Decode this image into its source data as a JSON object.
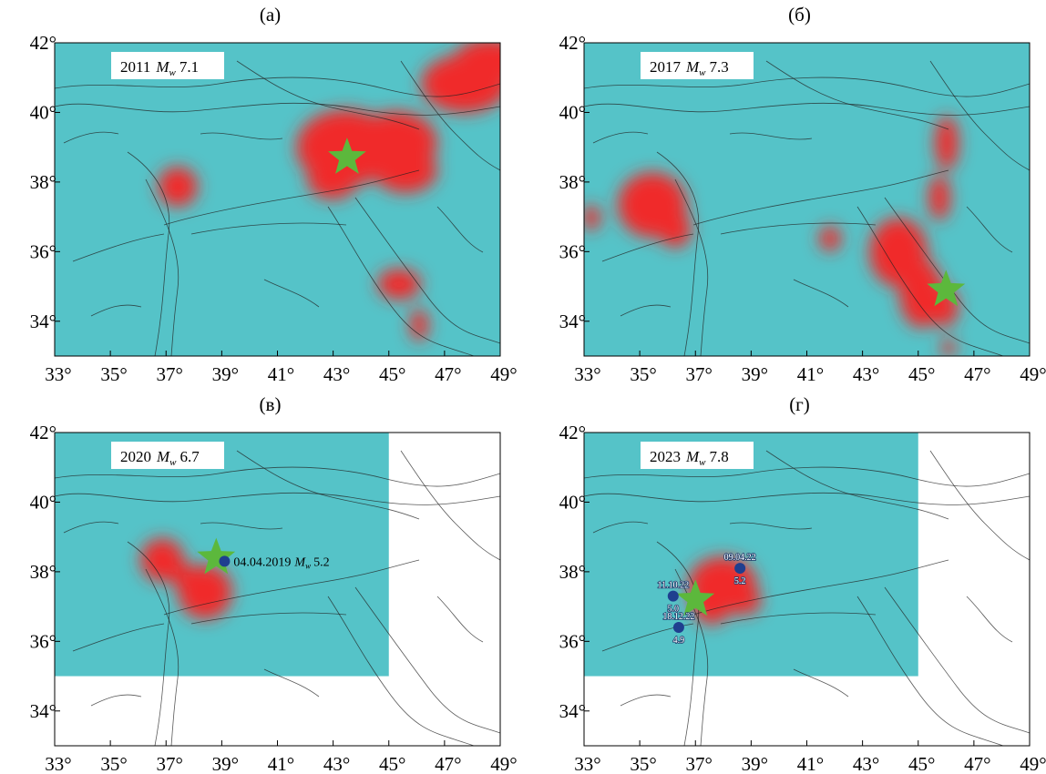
{
  "xlim": [
    33,
    49
  ],
  "ylim": [
    33,
    42
  ],
  "xticks": [
    {
      "value": 33,
      "label": "33°"
    },
    {
      "value": 35,
      "label": "35°"
    },
    {
      "value": 37,
      "label": "37°"
    },
    {
      "value": 39,
      "label": "39°"
    },
    {
      "value": 41,
      "label": "41°"
    },
    {
      "value": 43,
      "label": "43°"
    },
    {
      "value": 45,
      "label": "45°"
    },
    {
      "value": 47,
      "label": "47°"
    },
    {
      "value": 49,
      "label": "49°"
    }
  ],
  "yticks": [
    {
      "value": 34,
      "label": "34°"
    },
    {
      "value": 36,
      "label": "36°"
    },
    {
      "value": 38,
      "label": "38°"
    },
    {
      "value": 40,
      "label": "40°"
    },
    {
      "value": 42,
      "label": "42°"
    }
  ],
  "panels": [
    {
      "title": "(а)",
      "year": "2011",
      "magnitude_symbol": "M",
      "magnitude_subscript": "w",
      "magnitude": "7.1",
      "coverage": {
        "lon": [
          33,
          49
        ],
        "lat": [
          33,
          42
        ]
      },
      "epicenter": {
        "lon": 43.5,
        "lat": 38.7
      }
    },
    {
      "title": "(б)",
      "year": "2017",
      "magnitude_symbol": "M",
      "magnitude_subscript": "w",
      "magnitude": "7.3",
      "coverage": {
        "lon": [
          33,
          49
        ],
        "lat": [
          33,
          42
        ]
      },
      "epicenter": {
        "lon": 46,
        "lat": 34.9
      }
    },
    {
      "title": "(в)",
      "year": "2020",
      "magnitude_symbol": "M",
      "magnitude_subscript": "w",
      "magnitude": "6.7",
      "coverage": {
        "lon": [
          33,
          45
        ],
        "lat": [
          35,
          42
        ]
      },
      "epicenter": {
        "lon": 38.8,
        "lat": 38.4
      },
      "events": [
        {
          "lon": 39.1,
          "lat": 38.3,
          "date": "04.04.2019",
          "magnitude_symbol": "M",
          "magnitude_subscript": "w",
          "magnitude": "5.2"
        }
      ]
    },
    {
      "title": "(г)",
      "year": "2023",
      "magnitude_symbol": "M",
      "magnitude_subscript": "w",
      "magnitude": "7.8",
      "coverage": {
        "lon": [
          33,
          45
        ],
        "lat": [
          35,
          42
        ]
      },
      "epicenter": {
        "lon": 37,
        "lat": 37.2
      },
      "events": [
        {
          "lon": 38.6,
          "lat": 38.1,
          "date": "09.04.22",
          "magnitude": "5.2"
        },
        {
          "lon": 36.2,
          "lat": 37.3,
          "date": "11.10.22",
          "magnitude": "5.0"
        },
        {
          "lon": 36.4,
          "lat": 36.4,
          "date": "18.12.22",
          "magnitude": "4.9"
        }
      ]
    }
  ]
}
